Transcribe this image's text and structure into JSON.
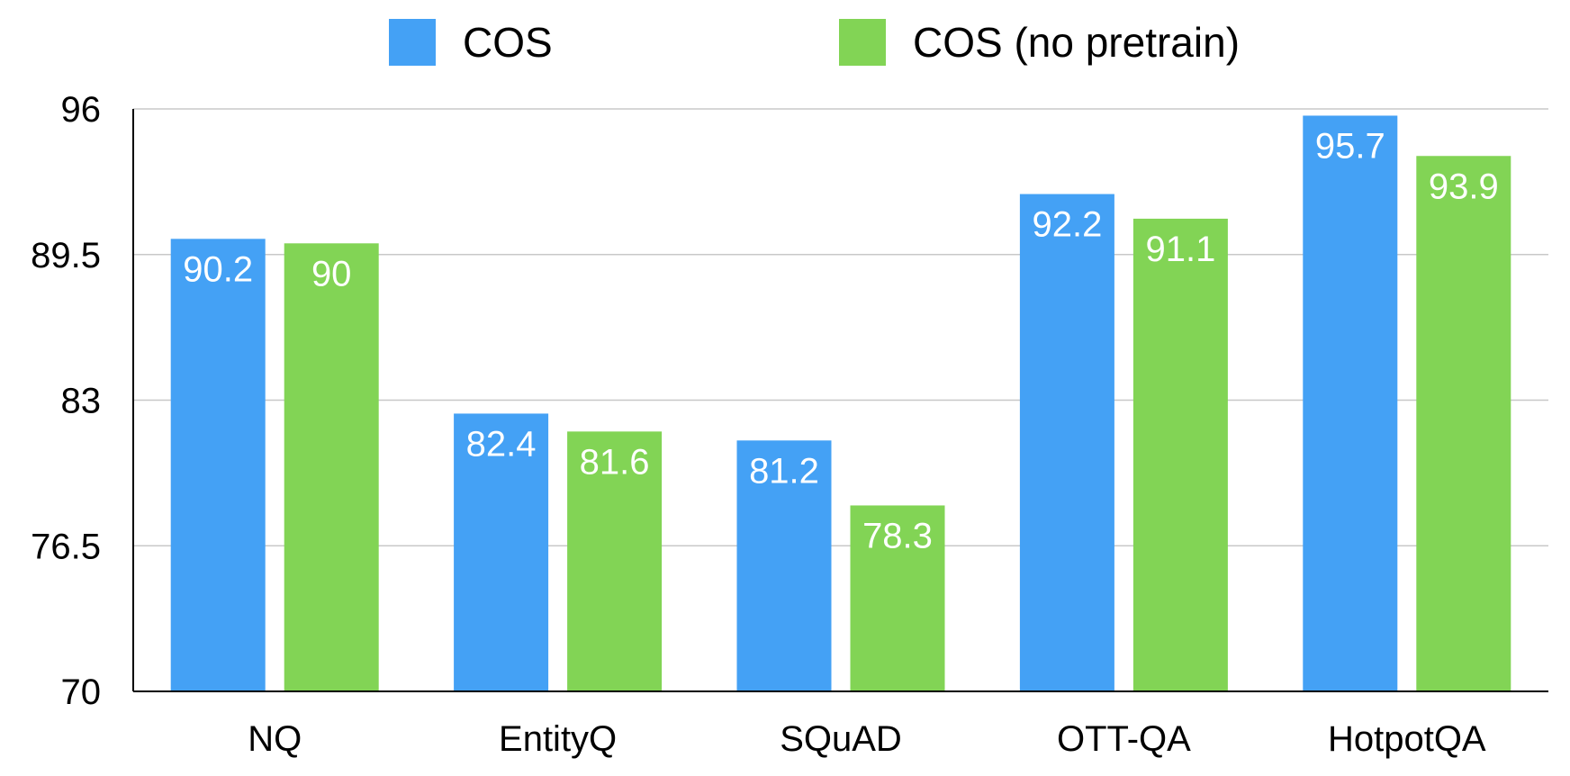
{
  "chart_data": {
    "type": "bar",
    "categories": [
      "NQ",
      "EntityQ",
      "SQuAD",
      "OTT-QA",
      "HotpotQA"
    ],
    "series": [
      {
        "name": "COS",
        "color": "#44a1f5",
        "values": [
          90.2,
          82.4,
          81.2,
          92.2,
          95.7
        ]
      },
      {
        "name": "COS (no pretrain)",
        "color": "#82d455",
        "values": [
          90,
          81.6,
          78.3,
          91.1,
          93.9
        ]
      }
    ],
    "data_labels": [
      [
        "90.2",
        "82.4",
        "81.2",
        "92.2",
        "95.7"
      ],
      [
        "90",
        "81.6",
        "78.3",
        "91.1",
        "93.9"
      ]
    ],
    "title": "",
    "xlabel": "",
    "ylabel": "",
    "ylim": [
      70,
      96
    ],
    "yticks": [
      70,
      76.5,
      83,
      89.5,
      96
    ],
    "ytick_labels": [
      "70",
      "76.5",
      "83",
      "89.5",
      "96"
    ],
    "grid": true,
    "legend_position": "top"
  }
}
